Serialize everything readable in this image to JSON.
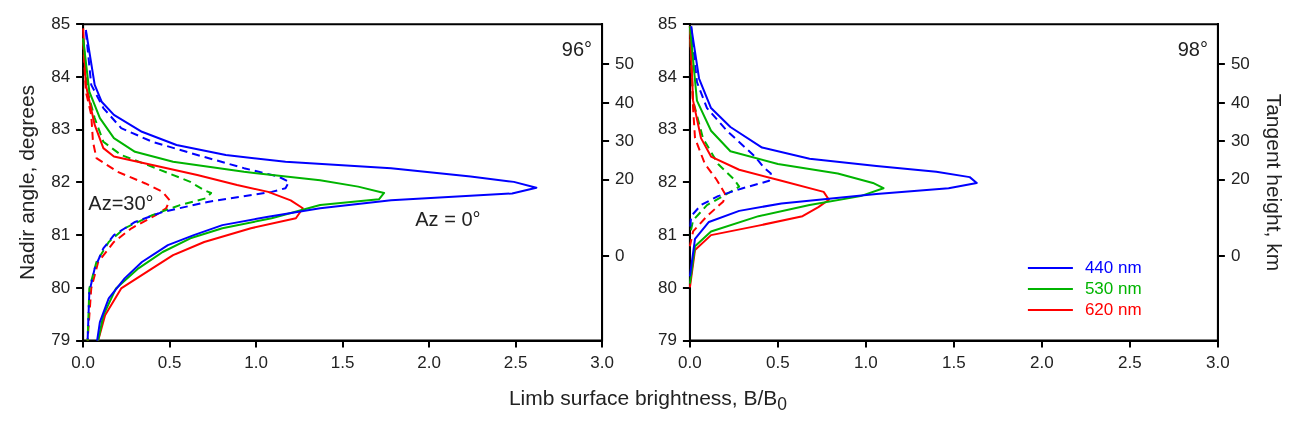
{
  "chart_data": [
    {
      "type": "line",
      "xlabel": "Limb surface brightness, B/B$_{0}$",
      "ylabel": "Nadir angle, degrees",
      "xlim": [
        0,
        3
      ],
      "ylim": [
        79,
        85
      ],
      "xticks": [
        {
          "value": 0,
          "label": "0.0"
        },
        {
          "value": 0.5,
          "label": "0.5"
        },
        {
          "value": 1,
          "label": "1.0"
        },
        {
          "value": 1.5,
          "label": "1.5"
        },
        {
          "value": 2,
          "label": "2.0"
        },
        {
          "value": 2.5,
          "label": "2.5"
        },
        {
          "value": 3,
          "label": "3.0"
        }
      ],
      "yticks": [
        79,
        80,
        81,
        82,
        83,
        84,
        85
      ],
      "y2lim": [
        -22,
        60.5
      ],
      "y2ticks": [
        50,
        40,
        30,
        20,
        0
      ],
      "grid": false,
      "legend": false,
      "annotations": [
        "96°",
        "Az=30°",
        "Az = 0°"
      ],
      "series": [
        {
          "color": "#0000ff",
          "line_style": "solid",
          "x": [
            0.016,
            0.067,
            0.107,
            0.178,
            0.34,
            0.54,
            0.825,
            1.17,
            1.78,
            2.24,
            2.49,
            2.62,
            2.48,
            1.78,
            1.37,
            1.07,
            0.805,
            0.64,
            0.49,
            0.34,
            0.24,
            0.148,
            0.097,
            0.081
          ],
          "values": [
            84.89,
            83.85,
            83.53,
            83.28,
            82.96,
            82.71,
            82.52,
            82.39,
            82.27,
            82.11,
            82.01,
            81.9,
            81.79,
            81.66,
            81.51,
            81.35,
            81.19,
            81.0,
            80.81,
            80.49,
            80.18,
            79.8,
            79.35,
            79.0
          ]
        },
        {
          "color": "#00b400",
          "line_style": "solid",
          "x": [
            0,
            0.036,
            0.097,
            0.178,
            0.3,
            0.52,
            0.93,
            1.37,
            1.59,
            1.74,
            1.71,
            1.37,
            1.09,
            0.805,
            0.62,
            0.46,
            0.32,
            0.19,
            0.117,
            0.087
          ],
          "values": [
            84.73,
            83.72,
            83.22,
            82.84,
            82.58,
            82.39,
            82.2,
            82.04,
            81.92,
            81.8,
            81.68,
            81.57,
            81.32,
            81.13,
            80.94,
            80.68,
            80.37,
            79.99,
            79.48,
            79.0
          ]
        },
        {
          "color": "#ff0000",
          "line_style": "solid",
          "x": [
            0,
            0.016,
            0.067,
            0.117,
            0.178,
            0.4,
            0.66,
            0.89,
            1.07,
            1.2,
            1.27,
            1.23,
            0.97,
            0.7,
            0.52,
            0.4,
            0.22,
            0.127,
            0.087
          ],
          "values": [
            84.92,
            83.85,
            83.09,
            82.65,
            82.49,
            82.33,
            82.14,
            81.95,
            81.82,
            81.66,
            81.51,
            81.32,
            81.13,
            80.87,
            80.62,
            80.37,
            79.99,
            79.48,
            79.0
          ]
        },
        {
          "color": "#0000ff",
          "line_style": "dashed",
          "x": [
            0.016,
            0.047,
            0.117,
            0.22,
            0.4,
            0.66,
            0.93,
            1.13,
            1.19,
            1.17,
            1.09,
            0.72,
            0.46,
            0.3,
            0.178,
            0.117,
            0.067,
            0.036,
            0.026
          ],
          "values": [
            84.86,
            83.85,
            83.41,
            83.03,
            82.77,
            82.52,
            82.27,
            82.11,
            82.01,
            81.89,
            81.82,
            81.63,
            81.44,
            81.25,
            81.0,
            80.75,
            80.37,
            79.92,
            79.0
          ]
        },
        {
          "color": "#00b400",
          "line_style": "dashed",
          "x": [
            0,
            0.026,
            0.067,
            0.117,
            0.22,
            0.42,
            0.62,
            0.7,
            0.74,
            0.71,
            0.56,
            0.4,
            0.24,
            0.148,
            0.077,
            0.036,
            0.026
          ],
          "values": [
            84.73,
            83.72,
            83.22,
            82.77,
            82.52,
            82.27,
            82.01,
            81.85,
            81.8,
            81.7,
            81.57,
            81.38,
            81.13,
            80.87,
            80.49,
            79.99,
            79.0
          ]
        },
        {
          "color": "#ff0000",
          "line_style": "dashed",
          "x": [
            0,
            0.016,
            0.047,
            0.057,
            0.077,
            0.2,
            0.36,
            0.46,
            0.5,
            0.48,
            0.42,
            0.28,
            0.178,
            0.087,
            0.047,
            0.026
          ],
          "values": [
            84.67,
            83.72,
            83.28,
            82.77,
            82.46,
            82.2,
            81.98,
            81.82,
            81.66,
            81.51,
            81.38,
            81.13,
            80.87,
            80.49,
            79.99,
            79.0
          ]
        }
      ]
    },
    {
      "type": "line",
      "y2label": "Tangent height, km",
      "xlim": [
        0,
        3
      ],
      "ylim": [
        79,
        85
      ],
      "xticks": [
        {
          "value": 0,
          "label": "0.0"
        },
        {
          "value": 0.5,
          "label": "0.5"
        },
        {
          "value": 1,
          "label": "1.0"
        },
        {
          "value": 1.5,
          "label": "1.5"
        },
        {
          "value": 2,
          "label": "2.0"
        },
        {
          "value": 2.5,
          "label": "2.5"
        },
        {
          "value": 3,
          "label": "3.0"
        }
      ],
      "yticks": [
        79,
        80,
        81,
        82,
        83,
        84,
        85
      ],
      "y2lim": [
        -22,
        60.5
      ],
      "y2ticks": [
        50,
        40,
        30,
        20,
        0
      ],
      "grid": false,
      "legend": "bottom right",
      "annotations": [
        "98°"
      ],
      "series": [
        {
          "name": "440 nm",
          "color": "#0000ff",
          "line_style": "solid",
          "x": [
            0.007,
            0.052,
            0.12,
            0.23,
            0.41,
            0.68,
            1.06,
            1.4,
            1.59,
            1.63,
            1.47,
            1.06,
            0.52,
            0.28,
            0.108,
            0.029,
            0
          ],
          "values": [
            84.96,
            83.97,
            83.41,
            83.05,
            82.66,
            82.45,
            82.31,
            82.2,
            82.1,
            81.99,
            81.89,
            81.78,
            81.6,
            81.46,
            81.25,
            80.93,
            80.22
          ]
        },
        {
          "name": "530 nm",
          "color": "#00b400",
          "line_style": "solid",
          "x": [
            0,
            0.04,
            0.12,
            0.23,
            0.5,
            0.84,
            1.04,
            1.1,
            0.97,
            0.68,
            0.39,
            0.12,
            0.029,
            0
          ],
          "values": [
            84.96,
            83.55,
            82.98,
            82.59,
            82.35,
            82.17,
            81.99,
            81.89,
            81.74,
            81.57,
            81.36,
            81.07,
            80.79,
            80.08
          ]
        },
        {
          "name": "620 nm",
          "color": "#ff0000",
          "line_style": "solid",
          "x": [
            0,
            0.018,
            0.063,
            0.12,
            0.28,
            0.52,
            0.76,
            0.79,
            0.73,
            0.64,
            0.39,
            0.12,
            0.029,
            0
          ],
          "values": [
            84.96,
            83.55,
            82.84,
            82.49,
            82.24,
            82.03,
            81.82,
            81.67,
            81.53,
            81.36,
            81.18,
            81.0,
            80.72,
            80.01
          ]
        },
        {
          "color": "#0000ff",
          "line_style": "dashed",
          "x": [
            0.007,
            0.04,
            0.097,
            0.21,
            0.37,
            0.42,
            0.46,
            0.45,
            0.3,
            0.16,
            0.063,
            0.007,
            0
          ],
          "values": [
            84.96,
            83.9,
            83.41,
            82.98,
            82.49,
            82.28,
            82.17,
            82.03,
            81.89,
            81.74,
            81.57,
            81.36,
            81.07
          ]
        },
        {
          "color": "#00b400",
          "line_style": "dashed",
          "x": [
            0,
            0.018,
            0.074,
            0.16,
            0.25,
            0.28,
            0.21,
            0.097,
            0.018,
            0
          ],
          "values": [
            84.96,
            83.55,
            82.84,
            82.35,
            82.06,
            81.92,
            81.78,
            81.57,
            81.28,
            81.0
          ]
        },
        {
          "color": "#ff0000",
          "line_style": "dashed",
          "x": [
            0,
            0.018,
            0.029,
            0.085,
            0.15,
            0.2,
            0.19,
            0.097,
            0.018,
            0
          ],
          "values": [
            84.96,
            83.41,
            82.84,
            82.35,
            82.06,
            81.78,
            81.64,
            81.36,
            81.07,
            80.79
          ]
        }
      ]
    }
  ]
}
